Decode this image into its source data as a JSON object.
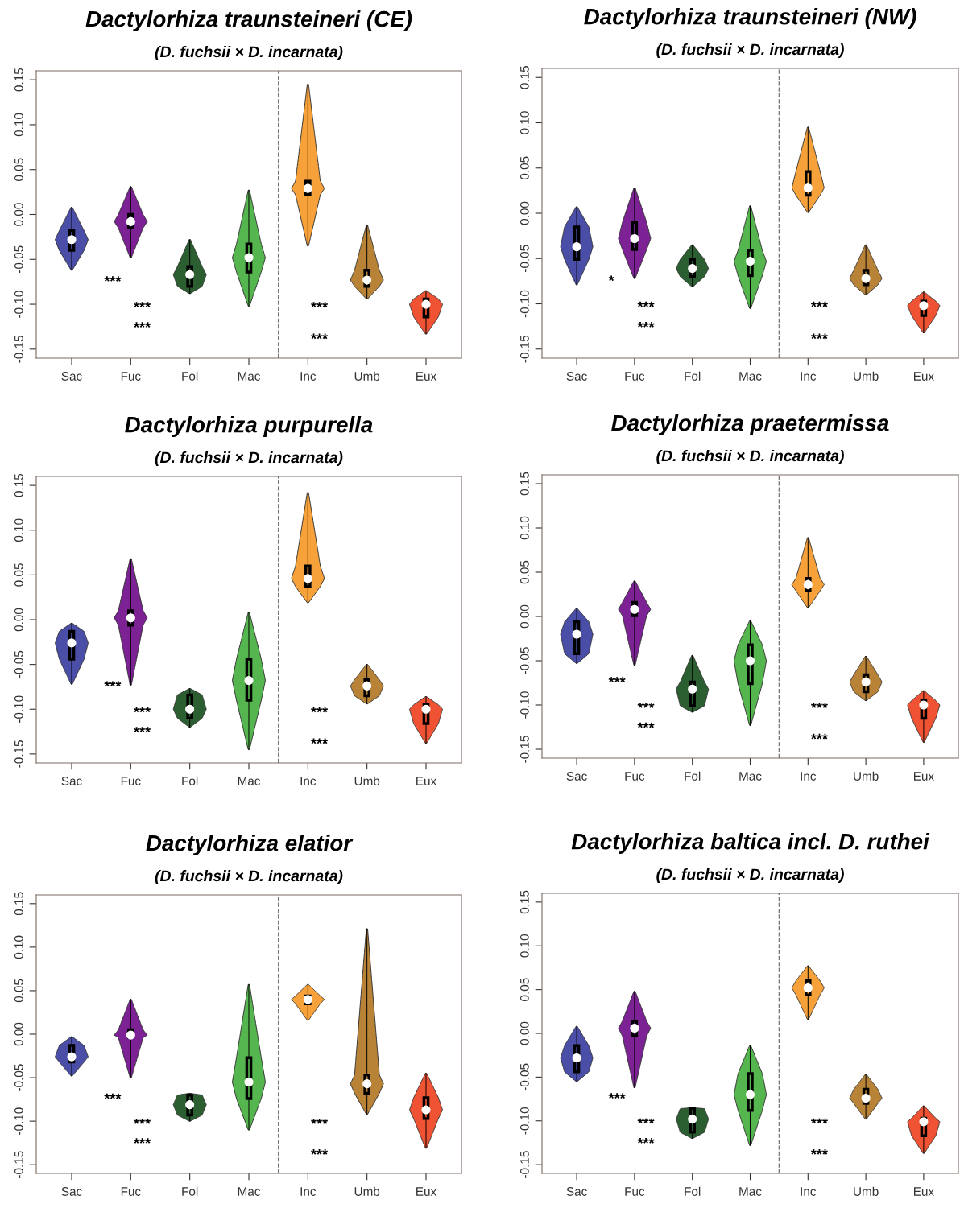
{
  "chart_data": [
    {
      "type": "box",
      "title": "Dactylorhiza traunsteineri (CE)",
      "subtitle": "(D. fuchsii × D. incarnata)",
      "categories": [
        "Sac",
        "Fuc",
        "Fol",
        "Mac",
        "Inc",
        "Umb",
        "Eux"
      ],
      "colors": [
        "#4b4ea6",
        "#7d2295",
        "#2b5e30",
        "#55b54e",
        "#f6a13a",
        "#b98337",
        "#ef5333"
      ],
      "ylim": [
        -0.16,
        0.16
      ],
      "yticks": [
        {
          "value": -0.15,
          "label": "-0.15"
        },
        {
          "value": -0.1,
          "label": "-0.10"
        },
        {
          "value": -0.05,
          "label": "-0.05"
        },
        {
          "value": 0,
          "label": "0.00"
        },
        {
          "value": 0.05,
          "label": "0.05"
        },
        {
          "value": 0.1,
          "label": "0.10"
        },
        {
          "value": 0.15,
          "label": "0.15"
        }
      ],
      "boxes": [
        {
          "low": -0.062,
          "q1": -0.04,
          "median": -0.028,
          "q3": -0.018,
          "high": 0.008
        },
        {
          "low": -0.048,
          "q1": -0.015,
          "median": -0.008,
          "q3": 0.0,
          "high": 0.031
        },
        {
          "low": -0.088,
          "q1": -0.08,
          "median": -0.067,
          "q3": -0.058,
          "high": -0.028
        },
        {
          "low": -0.102,
          "q1": -0.064,
          "median": -0.048,
          "q3": -0.033,
          "high": 0.027
        },
        {
          "low": -0.035,
          "q1": 0.022,
          "median": 0.029,
          "q3": 0.037,
          "high": 0.145
        },
        {
          "low": -0.094,
          "q1": -0.08,
          "median": -0.073,
          "q3": -0.062,
          "high": -0.012
        },
        {
          "low": -0.133,
          "q1": -0.114,
          "median": -0.1,
          "q3": -0.094,
          "high": -0.085
        }
      ],
      "annotations": [
        "***",
        "***",
        "***",
        "***",
        "***"
      ]
    },
    {
      "type": "box",
      "title": "Dactylorhiza traunsteineri (NW)",
      "subtitle": "(D. fuchsii × D. incarnata)",
      "categories": [
        "Sac",
        "Fuc",
        "Fol",
        "Mac",
        "Inc",
        "Umb",
        "Eux"
      ],
      "colors": [
        "#4b4ea6",
        "#7d2295",
        "#2b5e30",
        "#55b54e",
        "#f6a13a",
        "#b98337",
        "#ef5333"
      ],
      "ylim": [
        -0.16,
        0.16
      ],
      "yticks": [
        {
          "value": -0.15,
          "label": "-0.15"
        },
        {
          "value": -0.1,
          "label": "-0.10"
        },
        {
          "value": -0.05,
          "label": "-0.05"
        },
        {
          "value": 0,
          "label": "0.00"
        },
        {
          "value": 0.05,
          "label": "0.05"
        },
        {
          "value": 0.1,
          "label": "0.10"
        },
        {
          "value": 0.15,
          "label": "0.15"
        }
      ],
      "boxes": [
        {
          "low": -0.079,
          "q1": -0.051,
          "median": -0.037,
          "q3": -0.015,
          "high": 0.007
        },
        {
          "low": -0.072,
          "q1": -0.04,
          "median": -0.028,
          "q3": -0.01,
          "high": 0.028
        },
        {
          "low": -0.081,
          "q1": -0.07,
          "median": -0.061,
          "q3": -0.051,
          "high": -0.035
        },
        {
          "low": -0.105,
          "q1": -0.069,
          "median": -0.053,
          "q3": -0.041,
          "high": 0.008
        },
        {
          "low": 0.001,
          "q1": 0.02,
          "median": 0.028,
          "q3": 0.046,
          "high": 0.095
        },
        {
          "low": -0.09,
          "q1": -0.079,
          "median": -0.072,
          "q3": -0.063,
          "high": -0.035
        },
        {
          "low": -0.132,
          "q1": -0.113,
          "median": -0.102,
          "q3": -0.097,
          "high": -0.087
        }
      ],
      "annotations": [
        "*",
        "***",
        "***",
        "***",
        "***"
      ]
    },
    {
      "type": "box",
      "title": "Dactylorhiza purpurella",
      "subtitle": "(D. fuchsii × D. incarnata)",
      "categories": [
        "Sac",
        "Fuc",
        "Fol",
        "Mac",
        "Inc",
        "Umb",
        "Eux"
      ],
      "colors": [
        "#4b4ea6",
        "#7d2295",
        "#2b5e30",
        "#55b54e",
        "#f6a13a",
        "#b98337",
        "#ef5333"
      ],
      "ylim": [
        -0.16,
        0.16
      ],
      "yticks": [
        {
          "value": -0.15,
          "label": "-0.15"
        },
        {
          "value": -0.1,
          "label": "-0.10"
        },
        {
          "value": -0.05,
          "label": "-0.05"
        },
        {
          "value": 0,
          "label": "0.00"
        },
        {
          "value": 0.05,
          "label": "0.05"
        },
        {
          "value": 0.1,
          "label": "0.10"
        },
        {
          "value": 0.15,
          "label": "0.15"
        }
      ],
      "boxes": [
        {
          "low": -0.072,
          "q1": -0.044,
          "median": -0.026,
          "q3": -0.013,
          "high": -0.004
        },
        {
          "low": -0.073,
          "q1": -0.006,
          "median": 0.002,
          "q3": 0.01,
          "high": 0.068
        },
        {
          "low": -0.12,
          "q1": -0.11,
          "median": -0.1,
          "q3": -0.084,
          "high": -0.077
        },
        {
          "low": -0.145,
          "q1": -0.09,
          "median": -0.068,
          "q3": -0.044,
          "high": 0.008
        },
        {
          "low": 0.019,
          "q1": 0.037,
          "median": 0.046,
          "q3": 0.06,
          "high": 0.142
        },
        {
          "low": -0.094,
          "q1": -0.085,
          "median": -0.074,
          "q3": -0.067,
          "high": -0.05
        },
        {
          "low": -0.138,
          "q1": -0.116,
          "median": -0.1,
          "q3": -0.095,
          "high": -0.086
        }
      ],
      "annotations": [
        "***",
        "***",
        "***",
        "***",
        "***"
      ]
    },
    {
      "type": "box",
      "title": "Dactylorhiza praetermissa",
      "subtitle": "(D. fuchsii × D. incarnata)",
      "categories": [
        "Sac",
        "Fuc",
        "Fol",
        "Mac",
        "Inc",
        "Umb",
        "Eux"
      ],
      "colors": [
        "#4b4ea6",
        "#7d2295",
        "#2b5e30",
        "#55b54e",
        "#f6a13a",
        "#b98337",
        "#ef5333"
      ],
      "ylim": [
        -0.16,
        0.16
      ],
      "yticks": [
        {
          "value": -0.15,
          "label": "-0.15"
        },
        {
          "value": -0.1,
          "label": "-0.10"
        },
        {
          "value": -0.05,
          "label": "-0.05"
        },
        {
          "value": 0,
          "label": "0.00"
        },
        {
          "value": 0.05,
          "label": "0.05"
        },
        {
          "value": 0.1,
          "label": "0.10"
        },
        {
          "value": 0.15,
          "label": "0.15"
        }
      ],
      "boxes": [
        {
          "low": -0.053,
          "q1": -0.042,
          "median": -0.02,
          "q3": -0.006,
          "high": 0.009
        },
        {
          "low": -0.055,
          "q1": 0.001,
          "median": 0.008,
          "q3": 0.016,
          "high": 0.04
        },
        {
          "low": -0.108,
          "q1": -0.101,
          "median": -0.082,
          "q3": -0.074,
          "high": -0.044
        },
        {
          "low": -0.123,
          "q1": -0.076,
          "median": -0.05,
          "q3": -0.032,
          "high": -0.005
        },
        {
          "low": 0.01,
          "q1": 0.029,
          "median": 0.036,
          "q3": 0.043,
          "high": 0.089
        },
        {
          "low": -0.095,
          "q1": -0.085,
          "median": -0.074,
          "q3": -0.066,
          "high": -0.045
        },
        {
          "low": -0.142,
          "q1": -0.115,
          "median": -0.1,
          "q3": -0.095,
          "high": -0.084
        }
      ],
      "annotations": [
        "***",
        "***",
        "***",
        "***",
        "***"
      ]
    },
    {
      "type": "box",
      "title": "Dactylorhiza elatior",
      "subtitle": "(D. fuchsii × D. incarnata)",
      "categories": [
        "Sac",
        "Fuc",
        "Fol",
        "Mac",
        "Inc",
        "Umb",
        "Eux"
      ],
      "colors": [
        "#4b4ea6",
        "#7d2295",
        "#2b5e30",
        "#55b54e",
        "#f6a13a",
        "#b98337",
        "#ef5333"
      ],
      "ylim": [
        -0.16,
        0.16
      ],
      "yticks": [
        {
          "value": -0.15,
          "label": "-0.15"
        },
        {
          "value": -0.1,
          "label": "-0.10"
        },
        {
          "value": -0.05,
          "label": "-0.05"
        },
        {
          "value": 0,
          "label": "0.00"
        },
        {
          "value": 0.05,
          "label": "0.05"
        },
        {
          "value": 0.1,
          "label": "0.10"
        },
        {
          "value": 0.15,
          "label": "0.15"
        }
      ],
      "boxes": [
        {
          "low": -0.048,
          "q1": -0.032,
          "median": -0.026,
          "q3": -0.013,
          "high": -0.003
        },
        {
          "low": -0.05,
          "q1": -0.004,
          "median": -0.001,
          "q3": 0.005,
          "high": 0.04
        },
        {
          "low": -0.1,
          "q1": -0.093,
          "median": -0.081,
          "q3": -0.07,
          "high": -0.068
        },
        {
          "low": -0.11,
          "q1": -0.074,
          "median": -0.055,
          "q3": -0.027,
          "high": 0.057
        },
        {
          "low": 0.016,
          "q1": 0.035,
          "median": 0.04,
          "q3": 0.044,
          "high": 0.057
        },
        {
          "low": -0.092,
          "q1": -0.068,
          "median": -0.057,
          "q3": -0.047,
          "high": 0.121
        },
        {
          "low": -0.131,
          "q1": -0.097,
          "median": -0.087,
          "q3": -0.073,
          "high": -0.045
        }
      ],
      "annotations": [
        "***",
        "***",
        "***",
        "***",
        "***"
      ]
    },
    {
      "type": "box",
      "title": "Dactylorhiza baltica incl. D. ruthei",
      "subtitle": "(D. fuchsii × D. incarnata)",
      "categories": [
        "Sac",
        "Fuc",
        "Fol",
        "Mac",
        "Inc",
        "Umb",
        "Eux"
      ],
      "colors": [
        "#4b4ea6",
        "#7d2295",
        "#2b5e30",
        "#55b54e",
        "#f6a13a",
        "#b98337",
        "#ef5333"
      ],
      "ylim": [
        -0.16,
        0.16
      ],
      "yticks": [
        {
          "value": -0.15,
          "label": "-0.15"
        },
        {
          "value": -0.1,
          "label": "-0.10"
        },
        {
          "value": -0.05,
          "label": "-0.05"
        },
        {
          "value": 0,
          "label": "0.00"
        },
        {
          "value": 0.05,
          "label": "0.05"
        },
        {
          "value": 0.1,
          "label": "0.10"
        },
        {
          "value": 0.15,
          "label": "0.15"
        }
      ],
      "boxes": [
        {
          "low": -0.055,
          "q1": -0.044,
          "median": -0.028,
          "q3": -0.014,
          "high": 0.008
        },
        {
          "low": -0.062,
          "q1": -0.003,
          "median": 0.006,
          "q3": 0.014,
          "high": 0.048
        },
        {
          "low": -0.12,
          "q1": -0.113,
          "median": -0.098,
          "q3": -0.086,
          "high": -0.085
        },
        {
          "low": -0.128,
          "q1": -0.088,
          "median": -0.07,
          "q3": -0.046,
          "high": -0.014
        },
        {
          "low": 0.016,
          "q1": 0.044,
          "median": 0.052,
          "q3": 0.06,
          "high": 0.077
        },
        {
          "low": -0.098,
          "q1": -0.08,
          "median": -0.074,
          "q3": -0.064,
          "high": -0.047
        },
        {
          "low": -0.137,
          "q1": -0.117,
          "median": -0.101,
          "q3": -0.097,
          "high": -0.083
        }
      ],
      "annotations": [
        "***",
        "***",
        "***",
        "***",
        "***"
      ]
    }
  ]
}
